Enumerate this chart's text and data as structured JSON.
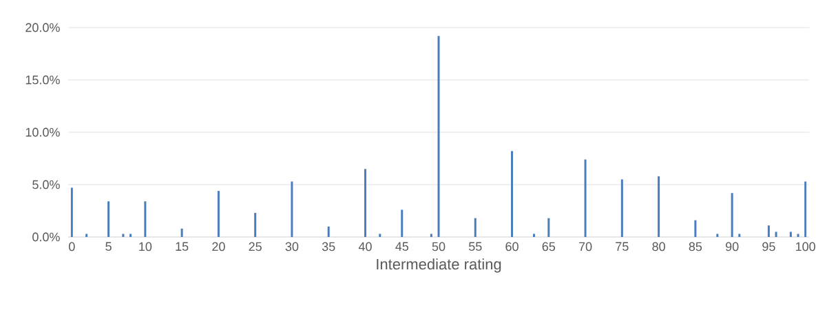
{
  "chart_data": {
    "type": "bar",
    "xlabel": "Intermediate rating",
    "x": [
      0,
      2,
      5,
      7,
      8,
      10,
      15,
      20,
      25,
      30,
      35,
      40,
      42,
      45,
      49,
      50,
      55,
      60,
      63,
      65,
      70,
      75,
      80,
      85,
      88,
      90,
      91,
      95,
      96,
      98,
      99,
      100
    ],
    "values": [
      4.7,
      0.3,
      3.4,
      0.3,
      0.3,
      3.4,
      0.8,
      4.4,
      2.3,
      5.3,
      1.0,
      6.5,
      0.3,
      2.6,
      0.3,
      19.2,
      1.8,
      8.2,
      0.3,
      1.8,
      7.4,
      5.5,
      5.8,
      1.6,
      0.3,
      4.2,
      0.3,
      1.1,
      0.5,
      0.5,
      0.3,
      5.3
    ],
    "color": "#4a7ebb",
    "xlim": [
      -0.5,
      100.5
    ],
    "xticks": [
      0,
      5,
      10,
      15,
      20,
      25,
      30,
      35,
      40,
      45,
      50,
      55,
      60,
      65,
      70,
      75,
      80,
      85,
      90,
      95,
      100
    ],
    "ylim": [
      0,
      20
    ],
    "yticks": [
      {
        "value": 0,
        "label": "0.0%"
      },
      {
        "value": 5,
        "label": "5.0%"
      },
      {
        "value": 10,
        "label": "10.0%"
      },
      {
        "value": 15,
        "label": "15.0%"
      },
      {
        "value": 20,
        "label": "20.0%"
      }
    ],
    "grid": "y"
  }
}
